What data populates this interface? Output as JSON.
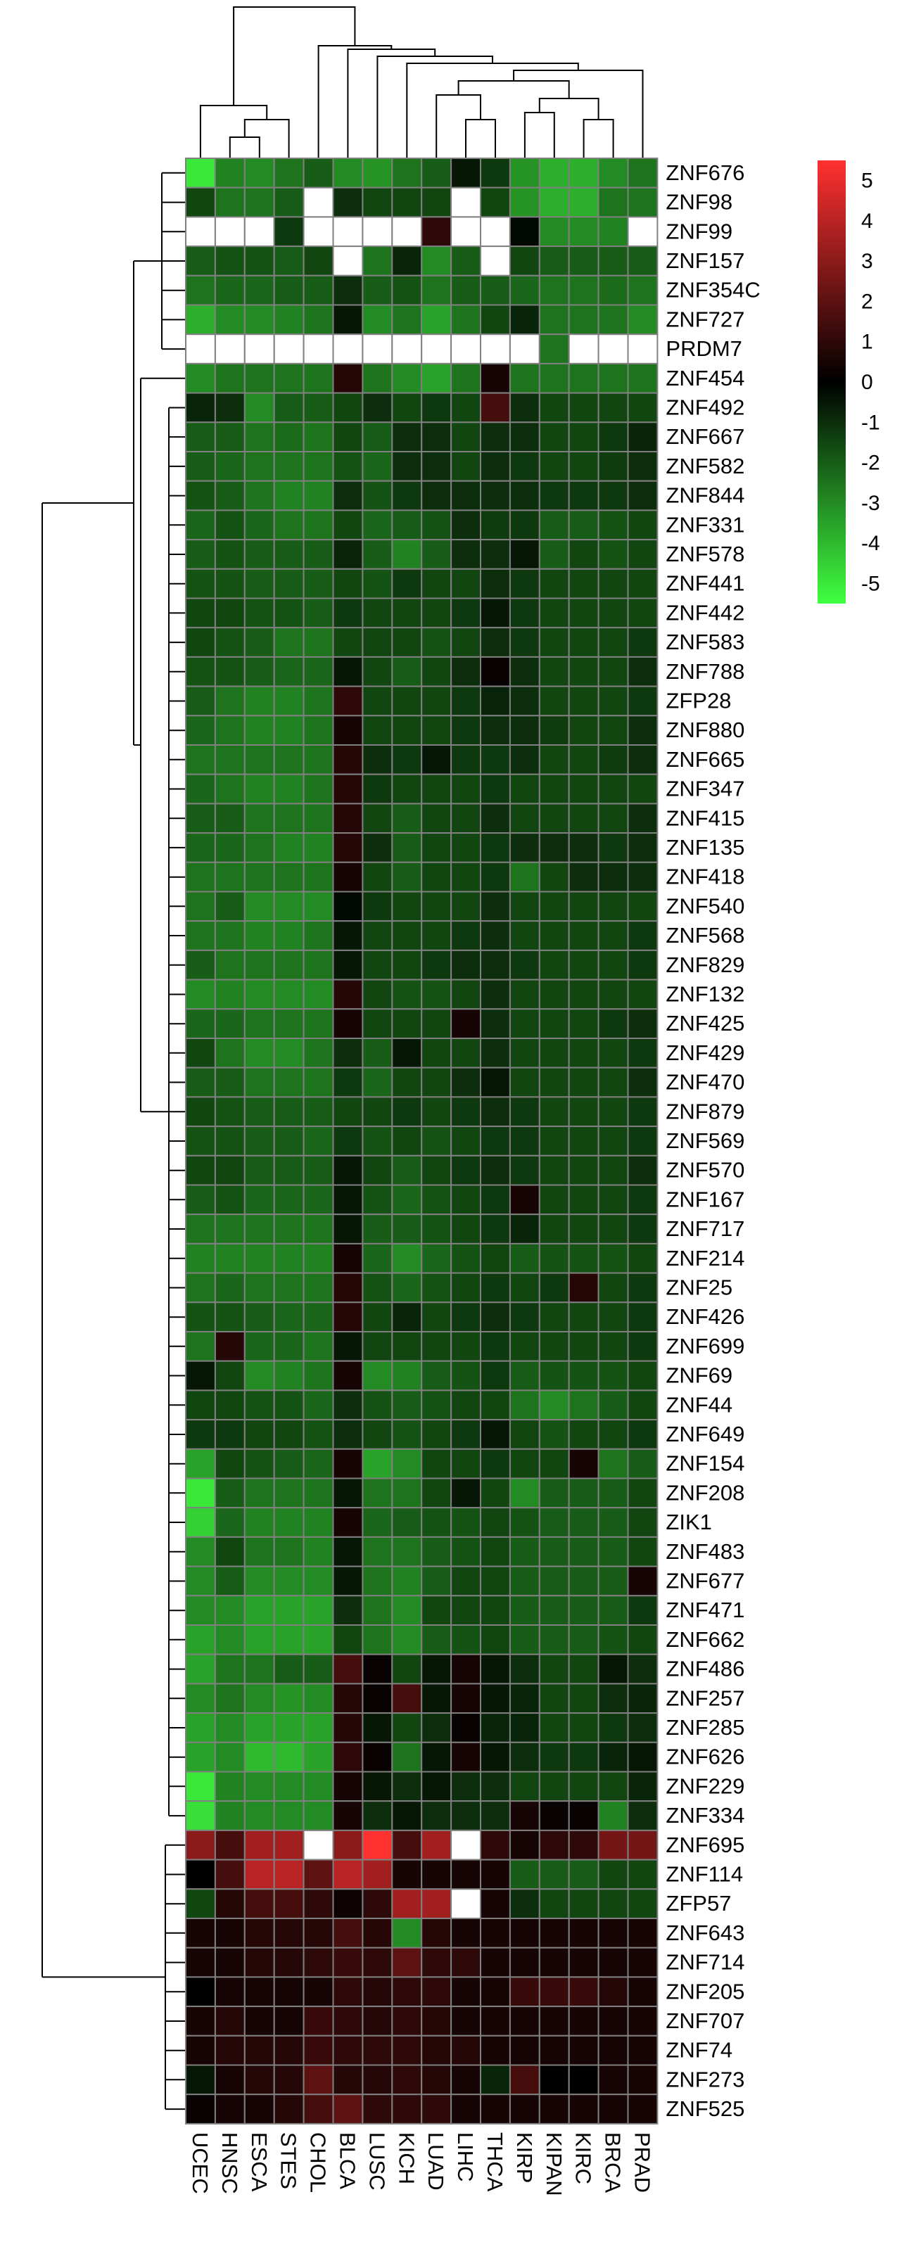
{
  "chart_data": {
    "type": "heatmap",
    "title": "",
    "xlabel": "",
    "ylabel": "",
    "columns": [
      "UCEC",
      "HNSC",
      "ESCA",
      "STES",
      "CHOL",
      "BLCA",
      "LUSC",
      "KICH",
      "LUAD",
      "LIHC",
      "THCA",
      "KIRP",
      "KIPAN",
      "KIRC",
      "BRCA",
      "PRAD"
    ],
    "rows": [
      "ZNF676",
      "ZNF98",
      "ZNF99",
      "ZNF157",
      "ZNF354C",
      "ZNF727",
      "PRDM7",
      "ZNF454",
      "ZNF492",
      "ZNF667",
      "ZNF582",
      "ZNF844",
      "ZNF331",
      "ZNF578",
      "ZNF441",
      "ZNF442",
      "ZNF583",
      "ZNF788",
      "ZFP28",
      "ZNF880",
      "ZNF665",
      "ZNF347",
      "ZNF415",
      "ZNF135",
      "ZNF418",
      "ZNF540",
      "ZNF568",
      "ZNF829",
      "ZNF132",
      "ZNF425",
      "ZNF429",
      "ZNF470",
      "ZNF879",
      "ZNF569",
      "ZNF570",
      "ZNF167",
      "ZNF717",
      "ZNF214",
      "ZNF25",
      "ZNF426",
      "ZNF699",
      "ZNF69",
      "ZNF44",
      "ZNF649",
      "ZNF154",
      "ZNF208",
      "ZIK1",
      "ZNF483",
      "ZNF677",
      "ZNF471",
      "ZNF662",
      "ZNF486",
      "ZNF257",
      "ZNF285",
      "ZNF626",
      "ZNF229",
      "ZNF334",
      "ZNF695",
      "ZNF114",
      "ZFP57",
      "ZNF643",
      "ZNF714",
      "ZNF205",
      "ZNF707",
      "ZNF74",
      "ZNF273",
      "ZNF525"
    ],
    "values": [
      [
        -5,
        -2.8,
        -3,
        -2.5,
        -2,
        -3,
        -3.2,
        -2.5,
        -2,
        -0.5,
        -1.2,
        -3.2,
        -3.8,
        -3.8,
        -3,
        -2.5
      ],
      [
        -1.5,
        -2.5,
        -2.5,
        -2,
        null,
        -1,
        -1.5,
        -1.5,
        -1.5,
        null,
        -1.5,
        -3.2,
        -3.8,
        -3.8,
        -2.5,
        -2.5
      ],
      [
        null,
        null,
        null,
        -1.2,
        null,
        null,
        null,
        null,
        1,
        null,
        null,
        -0.2,
        -3,
        -3,
        -2.8,
        null
      ],
      [
        -2,
        -1.8,
        -1.8,
        -2,
        -1.5,
        null,
        -2.5,
        -0.8,
        -3,
        -2,
        null,
        -1.5,
        -2,
        -2,
        -2,
        -2
      ],
      [
        -2.5,
        -2.2,
        -2.2,
        -2,
        -2,
        -1,
        -2,
        -1.8,
        -2.5,
        -2,
        -2,
        -2.2,
        -2.5,
        -2.5,
        -2.3,
        -2.5
      ],
      [
        -3.8,
        -3,
        -3,
        -2.8,
        -2.5,
        -0.5,
        -3,
        -2.5,
        -3.5,
        -2.5,
        -1.5,
        -0.8,
        -2.5,
        -2.5,
        -2.5,
        -3
      ],
      [
        null,
        null,
        null,
        null,
        null,
        null,
        null,
        null,
        null,
        null,
        null,
        null,
        -2.5,
        null,
        null,
        null
      ],
      [
        -3,
        -2.5,
        -2.5,
        -2.5,
        -2.5,
        0.8,
        -2.5,
        -3,
        -3.5,
        -2.5,
        0.5,
        -2.5,
        -2.5,
        -2.5,
        -2.5,
        -2.5
      ],
      [
        -0.8,
        -1,
        -3,
        -2,
        -2,
        -1.5,
        -1,
        -1.5,
        -1.2,
        -1.5,
        1.5,
        -1,
        -1.5,
        -1.5,
        -1.5,
        -1.5
      ],
      [
        -2,
        -2,
        -2.5,
        -2.3,
        -2.5,
        -1.5,
        -2,
        -1,
        -1,
        -1.5,
        -1,
        -1,
        -1.5,
        -1.5,
        -1.2,
        -0.8
      ],
      [
        -2,
        -2.2,
        -2.5,
        -2.5,
        -2.5,
        -1.8,
        -2.2,
        -1,
        -1,
        -1.5,
        -1,
        -1.2,
        -1.5,
        -1.5,
        -1.3,
        -1
      ],
      [
        -1.8,
        -2,
        -2.5,
        -2.8,
        -2.8,
        -1,
        -1.8,
        -1.2,
        -1,
        -1,
        -1,
        -1,
        -1.2,
        -1.2,
        -1.2,
        -1
      ],
      [
        -2.2,
        -1.8,
        -2.2,
        -2.5,
        -2.5,
        -1.5,
        -2.2,
        -2,
        -1.8,
        -1,
        -1.3,
        -1.2,
        -2,
        -2,
        -1.8,
        -1.5
      ],
      [
        -2,
        -1.8,
        -2,
        -2,
        -2,
        -0.8,
        -2,
        -2.8,
        -2,
        -1,
        -1,
        -0.5,
        -2,
        -1.5,
        -1.8,
        -1.5
      ],
      [
        -1.8,
        -1.8,
        -2,
        -2,
        -2,
        -1.5,
        -1.8,
        -1.2,
        -1.5,
        -1.5,
        -1,
        -1.2,
        -1.5,
        -1.5,
        -1.5,
        -1.5
      ],
      [
        -1.5,
        -1.5,
        -1.8,
        -1.8,
        -2,
        -1.2,
        -1.5,
        -1.5,
        -1.5,
        -1.2,
        -0.5,
        -1.2,
        -1.5,
        -1.5,
        -1.5,
        -1.5
      ],
      [
        -1.5,
        -1.8,
        -2,
        -2.5,
        -2.5,
        -1.5,
        -1.5,
        -1.5,
        -1.8,
        -1.5,
        -1,
        -1.2,
        -1.5,
        -1.5,
        -1.5,
        -1.2
      ],
      [
        -1.8,
        -1.8,
        -2,
        -2.2,
        -2.2,
        -0.5,
        -1.5,
        -2,
        -1.5,
        -1,
        0.2,
        -1,
        -1.5,
        -1.5,
        -1.5,
        -1
      ],
      [
        -2,
        -2.5,
        -2.8,
        -2.8,
        -2.5,
        1,
        -1.5,
        -1.5,
        -1.5,
        -1.2,
        -0.8,
        -1,
        -1.5,
        -1.5,
        -1.5,
        -1.2
      ],
      [
        -2.2,
        -2.5,
        -2.8,
        -2.8,
        -2.5,
        0.5,
        -1.5,
        -1.5,
        -1.5,
        -1.2,
        -1,
        -1,
        -1.3,
        -1.5,
        -1.5,
        -1
      ],
      [
        -2.5,
        -2.5,
        -2.5,
        -2.5,
        -2.5,
        0.8,
        -1,
        -1.2,
        -0.5,
        -1.2,
        -1.2,
        -1,
        -1.5,
        -1.5,
        -1.3,
        -1
      ],
      [
        -2.2,
        -2.5,
        -2.8,
        -2.8,
        -2.5,
        0.8,
        -1.2,
        -1.5,
        -1.5,
        -1.5,
        -1.2,
        -1.5,
        -1.5,
        -1.5,
        -1.5,
        -1.5
      ],
      [
        -2,
        -2,
        -2.5,
        -2.5,
        -2.5,
        0.8,
        -1.5,
        -2,
        -1.5,
        -1.5,
        -1,
        -1.5,
        -1.5,
        -1.5,
        -1.5,
        -1
      ],
      [
        -2.2,
        -2.2,
        -2.5,
        -2.8,
        -2.8,
        0.8,
        -1,
        -2,
        -1.5,
        -1.5,
        -1.2,
        -1,
        -1,
        -1,
        -1.2,
        -1
      ],
      [
        -2.5,
        -2.5,
        -2.5,
        -2.5,
        -2.5,
        0.5,
        -1.5,
        -2,
        -1.5,
        -1.5,
        -1.2,
        -2.5,
        -1.5,
        -1,
        -1,
        -1
      ],
      [
        -2.5,
        -2,
        -3,
        -3,
        -3,
        -0.2,
        -1.2,
        -1.5,
        -1.5,
        -1.5,
        -1,
        -1.5,
        -1.5,
        -1.5,
        -1.5,
        -1.5
      ],
      [
        -2.5,
        -2.5,
        -2.8,
        -2.8,
        -2.5,
        -0.5,
        -1.5,
        -1.5,
        -1.5,
        -1.2,
        -1,
        -1.5,
        -1.5,
        -1.5,
        -1.5,
        -1.2
      ],
      [
        -2,
        -2.5,
        -2.5,
        -2.5,
        -2.5,
        -0.5,
        -1.5,
        -1.5,
        -1.2,
        -1,
        -1,
        -1.2,
        -1.5,
        -1.5,
        -1.5,
        -1.2
      ],
      [
        -3,
        -2.8,
        -3,
        -3,
        -3,
        0.8,
        -1.5,
        -1.8,
        -1.8,
        -1.5,
        -1,
        -1.5,
        -1.5,
        -1.5,
        -1.5,
        -1.5
      ],
      [
        -2.2,
        -2.2,
        -2.5,
        -2.5,
        -2.5,
        0.5,
        -1.5,
        -1.5,
        -1.5,
        0.5,
        -1,
        -1.5,
        -1.5,
        -1.5,
        -1.2,
        -1
      ],
      [
        -1.5,
        -2.5,
        -3,
        -3,
        -2.5,
        -1,
        -2,
        -0.5,
        -1.5,
        -1.5,
        -1,
        -1.5,
        -1.5,
        -1.5,
        -1.5,
        -1.2
      ],
      [
        -2,
        -2,
        -2.5,
        -2.5,
        -2.5,
        -1.2,
        -2.2,
        -1.5,
        -1.5,
        -1,
        -0.5,
        -1.5,
        -1.5,
        -1.5,
        -1.5,
        -1
      ],
      [
        -1.5,
        -1.8,
        -2,
        -2,
        -2,
        -1.5,
        -1.5,
        -1.2,
        -1.5,
        -1.2,
        -1,
        -1.2,
        -1.5,
        -1.5,
        -1.5,
        -1.2
      ],
      [
        -1.8,
        -1.8,
        -2,
        -2,
        -2.2,
        -1.2,
        -1.8,
        -1.5,
        -1.8,
        -1.5,
        -1.2,
        -1.2,
        -1.5,
        -1.5,
        -1.5,
        -1.2
      ],
      [
        -1.5,
        -1.5,
        -2,
        -2,
        -2,
        -0.5,
        -1.5,
        -2,
        -1.5,
        -1.2,
        -1,
        -1.2,
        -1.5,
        -1.5,
        -1.5,
        -1
      ],
      [
        -2,
        -1.8,
        -2.2,
        -2.2,
        -2.2,
        -0.5,
        -1.8,
        -2.2,
        -1.8,
        -1.5,
        -1.2,
        0.5,
        -1.5,
        -1.5,
        -1.5,
        -1.2
      ],
      [
        -2.5,
        -2.5,
        -2.5,
        -2.5,
        -2.5,
        -0.5,
        -2,
        -2,
        -1.8,
        -1.5,
        -1.2,
        -0.8,
        -1.5,
        -1.5,
        -1.5,
        -1.2
      ],
      [
        -2.8,
        -2.8,
        -2.8,
        -2.8,
        -2.8,
        0.5,
        -2.2,
        -3,
        -2.2,
        -1.8,
        -1.5,
        -2,
        -1.8,
        -1.8,
        -1.8,
        -1.5
      ],
      [
        -2.5,
        -2.2,
        -2.5,
        -2.5,
        -2.5,
        0.8,
        -1.8,
        -2.2,
        -1.8,
        -1.5,
        -1.2,
        -1.5,
        -1.2,
        0.8,
        -1.5,
        -1.2
      ],
      [
        -1.8,
        -1.8,
        -2,
        -2.2,
        -2.2,
        0.8,
        -1.5,
        -0.8,
        -1.5,
        -1.2,
        -1,
        -1.2,
        -1.5,
        -1.5,
        -1.5,
        -1.2
      ],
      [
        -2.5,
        0.8,
        -2.2,
        -2.2,
        -2.5,
        -0.5,
        -1.5,
        -1.5,
        -1.5,
        -1.5,
        -1.2,
        -1.5,
        -1.5,
        -1.5,
        -1.5,
        -1.2
      ],
      [
        -0.5,
        -1.5,
        -3,
        -2.8,
        -2.5,
        0.5,
        -3,
        -2.8,
        -2,
        -1.8,
        -1.2,
        -2,
        -1.8,
        -1.8,
        -1.8,
        -1.5
      ],
      [
        -1.5,
        -1.5,
        -1.8,
        -1.8,
        -2.2,
        -1,
        -1.8,
        -2,
        -1.8,
        -1.5,
        -1.5,
        -2.5,
        -3,
        -2.5,
        -2,
        -1.5
      ],
      [
        -1.2,
        -1.2,
        -1.5,
        -1.5,
        -1.8,
        -1,
        -1.5,
        -1.8,
        -1.5,
        -1.2,
        -0.5,
        -1.5,
        -1.8,
        -1.5,
        -1.5,
        -1.2
      ],
      [
        -3.5,
        -1.5,
        -1.8,
        -2,
        -2.2,
        0.5,
        -3.5,
        -3,
        -1.5,
        -1.5,
        -1.2,
        -1.5,
        -1.5,
        0.5,
        -2.5,
        -2
      ],
      [
        -5,
        -2,
        -2.5,
        -2.5,
        -2.5,
        -0.5,
        -2.5,
        -2.5,
        -1.5,
        -0.5,
        -1.5,
        -3,
        -2,
        -2,
        -2,
        -1.5
      ],
      [
        -4.5,
        -2.2,
        -2.8,
        -2.8,
        -2.8,
        0.5,
        -2.2,
        -2,
        -1.8,
        -1.8,
        -1.5,
        -1.8,
        -2,
        -2,
        -2,
        -1.5
      ],
      [
        -3,
        -1.5,
        -2.5,
        -2.5,
        -2.8,
        -0.5,
        -2.5,
        -2.5,
        -2,
        -1.8,
        -1.5,
        -2,
        -2,
        -2,
        -2,
        -1.5
      ],
      [
        -3,
        -2,
        -3,
        -3,
        -3,
        -0.5,
        -2.5,
        -2.8,
        -2,
        -1.5,
        -1.5,
        -2,
        -2,
        -2,
        -2,
        0.5
      ],
      [
        -3,
        -3,
        -3.5,
        -3.5,
        -3.5,
        -1,
        -2.5,
        -3,
        -1.5,
        -1.5,
        -1.5,
        -2,
        -2,
        -2,
        -2,
        -1.2
      ],
      [
        -3.5,
        -3,
        -3.5,
        -3.5,
        -3.5,
        -1.5,
        -2.5,
        -3,
        -2,
        -1.8,
        -1.5,
        -2,
        -2,
        -2,
        -1.8,
        -1.5
      ],
      [
        -3.5,
        -2.5,
        -2.5,
        -2,
        -2,
        1.5,
        0.2,
        -1.5,
        -0.5,
        0.5,
        -0.5,
        -1,
        -1.5,
        -1.5,
        -0.5,
        -1
      ],
      [
        -3,
        -2.5,
        -3,
        -3.2,
        -3,
        0.8,
        0.2,
        1.5,
        -0.5,
        0.5,
        -0.5,
        -0.8,
        -1.5,
        -1.5,
        -1,
        -0.8
      ],
      [
        -3.5,
        -3,
        -3.5,
        -3.5,
        -3.5,
        0.8,
        -0.5,
        -1.5,
        -1,
        0.2,
        -0.8,
        -0.8,
        -1.5,
        -1.5,
        -1.2,
        -1
      ],
      [
        -3.5,
        -3,
        -4,
        -4,
        -3.5,
        1,
        0.2,
        -2.5,
        -0.5,
        0.5,
        -0.5,
        -1,
        -1.2,
        -1.2,
        -0.8,
        -0.5
      ],
      [
        -5,
        -2.8,
        -3,
        -3,
        -3,
        0.5,
        -0.5,
        -1,
        -0.5,
        -1,
        -1,
        -1.5,
        -1.5,
        -1.5,
        -1.5,
        -0.8
      ],
      [
        -4.8,
        -2.8,
        -3,
        -3,
        -3,
        0.5,
        -1,
        -0.5,
        -1,
        -1,
        -1,
        0.5,
        0.2,
        0.2,
        -2.8,
        -1
      ],
      [
        3,
        1.5,
        3.5,
        3.5,
        null,
        3,
        5.5,
        1.5,
        3.5,
        null,
        1,
        0.5,
        1,
        1,
        2.5,
        2.5
      ],
      [
        0,
        1.5,
        4,
        4,
        2,
        4,
        3.5,
        0.5,
        0.5,
        0.5,
        0.5,
        -2,
        -2,
        -2,
        -1.5,
        -1.5
      ],
      [
        -1.5,
        0.8,
        1.5,
        1.5,
        1,
        0.3,
        1,
        3.5,
        3.5,
        null,
        0.5,
        -1,
        -1.5,
        -1.5,
        -1.5,
        -1.5
      ],
      [
        0.5,
        0.5,
        0.8,
        0.8,
        0.8,
        1.5,
        0.8,
        -3,
        0.8,
        0.5,
        0.5,
        0.5,
        0.5,
        0.5,
        0.5,
        0.5
      ],
      [
        0.5,
        0.5,
        0.8,
        0.8,
        1,
        1.2,
        1,
        2,
        1,
        1,
        0.5,
        0.5,
        0.5,
        0.5,
        0.5,
        0.5
      ],
      [
        0,
        0.5,
        0.5,
        0.5,
        0.5,
        1,
        0.8,
        1,
        1,
        0.5,
        0.5,
        1.2,
        1.2,
        1.2,
        0.8,
        0.5
      ],
      [
        0.5,
        0.8,
        0.5,
        0.5,
        1.2,
        1,
        0.8,
        1,
        0.8,
        0.5,
        0.5,
        0.5,
        0.5,
        0.5,
        0.5,
        0.5
      ],
      [
        0.5,
        0.8,
        0.8,
        0.8,
        1.2,
        1,
        1,
        1,
        0.8,
        0.8,
        0.5,
        0.5,
        0.5,
        0.5,
        0.5,
        0.5
      ],
      [
        -0.5,
        0.5,
        0.8,
        0.8,
        2,
        0.8,
        0.8,
        1,
        0.8,
        0.5,
        -0.8,
        1.5,
        0,
        0,
        0.5,
        0.5
      ],
      [
        0.2,
        0.5,
        0.5,
        0.8,
        1.5,
        2,
        1,
        1,
        1,
        0.5,
        0.5,
        0.5,
        0.5,
        0.5,
        0.5,
        0.5
      ]
    ],
    "missing_color": "#ffffff",
    "colorbar": {
      "ticks": [
        5,
        4,
        3,
        2,
        1,
        0,
        -1,
        -2,
        -3,
        -4,
        -5
      ],
      "ticklabels": [
        "5",
        "4",
        "3",
        "2",
        "1",
        "0",
        "-1",
        "-2",
        "-3",
        "-4",
        "-5"
      ],
      "range": [
        -5.5,
        5.5
      ],
      "colors": {
        "high": "#ff3030",
        "mid": "#000000",
        "low": "#40ff40"
      }
    },
    "gridline_color": "#808080",
    "col_dendrogram": true,
    "row_dendrogram": true
  }
}
